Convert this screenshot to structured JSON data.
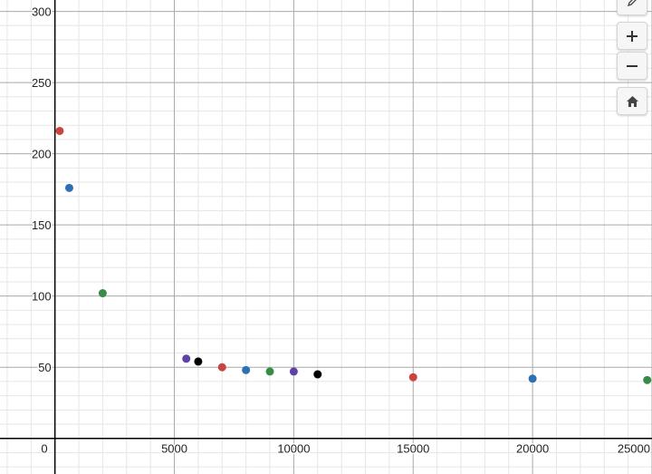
{
  "controls": {
    "edit_icon": "pencil-icon",
    "zoom_in_icon": "plus-icon",
    "zoom_out_icon": "minus-icon",
    "home_icon": "home-icon"
  },
  "chart_data": {
    "type": "scatter",
    "title": "",
    "xlabel": "",
    "ylabel": "",
    "xlim": [
      -2300,
      25000
    ],
    "ylim": [
      -25,
      308
    ],
    "grid": true,
    "x_ticks": [
      5000,
      10000,
      15000,
      20000,
      25000
    ],
    "x_tick_labels": [
      "5000",
      "10000",
      "15000",
      "20000",
      "25000"
    ],
    "y_ticks": [
      50,
      100,
      150,
      200,
      250,
      300
    ],
    "y_tick_labels": [
      "50",
      "100",
      "150",
      "200",
      "250",
      "300"
    ],
    "origin_label": "0",
    "points": [
      {
        "x": 200,
        "y": 216,
        "color": "#c74440"
      },
      {
        "x": 600,
        "y": 176,
        "color": "#2d70b3"
      },
      {
        "x": 2000,
        "y": 102,
        "color": "#388c46"
      },
      {
        "x": 5500,
        "y": 56,
        "color": "#6042a6"
      },
      {
        "x": 6000,
        "y": 54,
        "color": "#000000"
      },
      {
        "x": 7000,
        "y": 50,
        "color": "#c74440"
      },
      {
        "x": 8000,
        "y": 48,
        "color": "#2d70b3"
      },
      {
        "x": 9000,
        "y": 47,
        "color": "#388c46"
      },
      {
        "x": 10000,
        "y": 47,
        "color": "#6042a6"
      },
      {
        "x": 11000,
        "y": 45,
        "color": "#000000"
      },
      {
        "x": 15000,
        "y": 43,
        "color": "#c74440"
      },
      {
        "x": 20000,
        "y": 42,
        "color": "#2d70b3"
      },
      {
        "x": 24800,
        "y": 41,
        "color": "#388c46"
      }
    ]
  }
}
